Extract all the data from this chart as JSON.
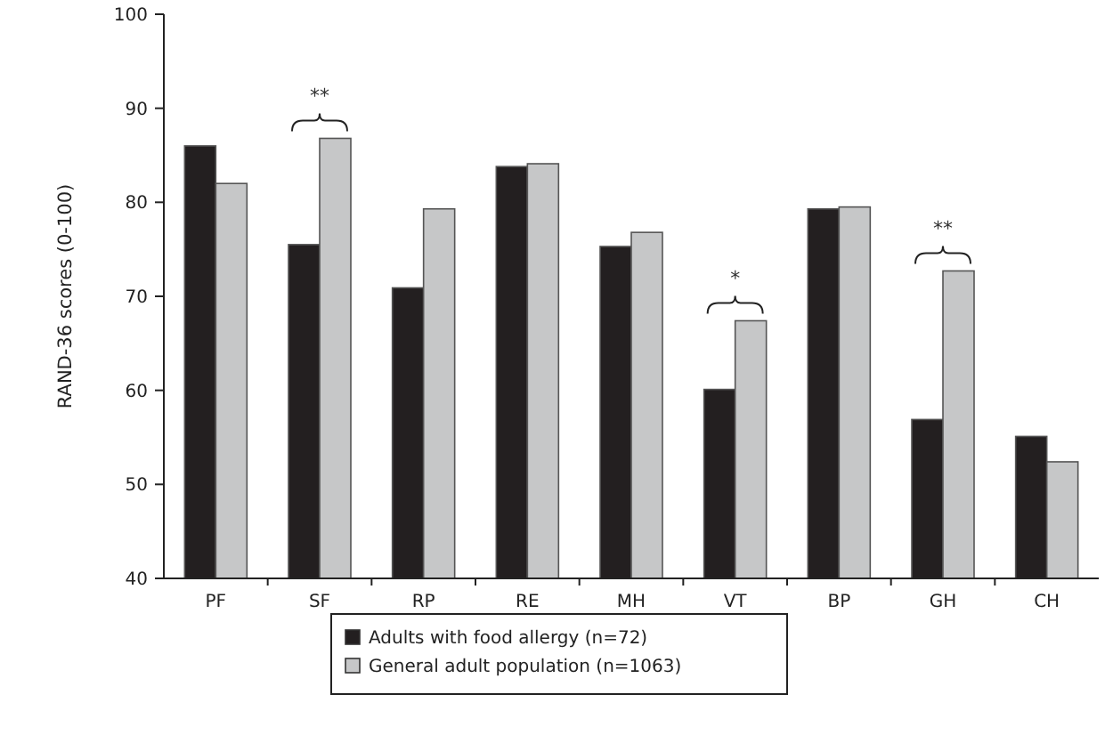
{
  "chart_data": {
    "type": "bar",
    "ylabel": "RAND-36 scores (0-100)",
    "categories": [
      "PF",
      "SF",
      "RP",
      "RE",
      "MH",
      "VT",
      "BP",
      "GH",
      "CH"
    ],
    "series": [
      {
        "name": "Adults with food allergy (n=72)",
        "color": "#231f20",
        "values": [
          86,
          75.5,
          70.9,
          83.8,
          75.3,
          60.1,
          79.3,
          56.9,
          55.1
        ]
      },
      {
        "name": "General adult population (n=1063)",
        "color": "#c6c7c8",
        "values": [
          82,
          86.8,
          79.3,
          84.1,
          76.8,
          67.4,
          79.5,
          72.7,
          52.4
        ]
      }
    ],
    "ylim": [
      40,
      100
    ],
    "yticks": [
      {
        "value": 40,
        "label": "40"
      },
      {
        "value": 50,
        "label": "50"
      },
      {
        "value": 60,
        "label": "60"
      },
      {
        "value": 70,
        "label": "70"
      },
      {
        "value": 80,
        "label": "80"
      },
      {
        "value": 90,
        "label": "90"
      },
      {
        "value": 100,
        "label": "100"
      }
    ],
    "annotations": [
      "**",
      "*",
      "**"
    ],
    "grid": false,
    "legend": "bottom"
  }
}
